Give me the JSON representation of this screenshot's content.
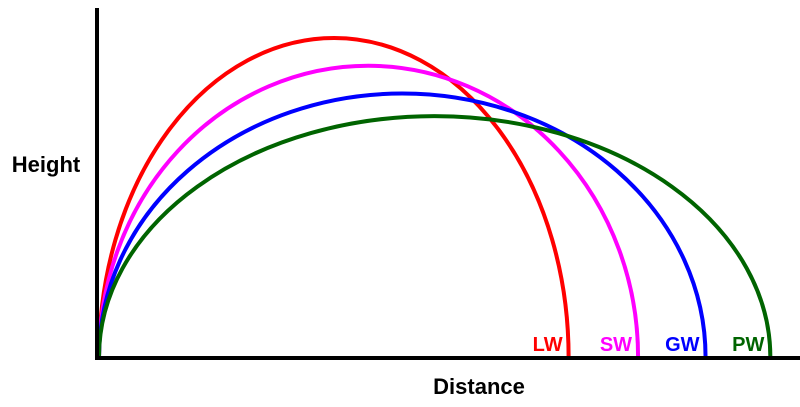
{
  "chart_data": {
    "type": "line",
    "title": "",
    "xlabel": "Distance",
    "ylabel": "Height",
    "xlim": [
      0,
      100
    ],
    "ylim": [
      0,
      100
    ],
    "grid": false,
    "axes_ticks": false,
    "series": [
      {
        "name": "LW",
        "color": "#ff0000",
        "apex_x": 35.2,
        "apex_y": 100,
        "landing_x": 70.3
      },
      {
        "name": "SW",
        "color": "#ff00ff",
        "apex_x": 40.3,
        "apex_y": 91.3,
        "landing_x": 80.7
      },
      {
        "name": "GW",
        "color": "#0000ff",
        "apex_x": 45.4,
        "apex_y": 82.6,
        "landing_x": 90.8
      },
      {
        "name": "PW",
        "color": "#006400",
        "apex_x": 50.2,
        "apex_y": 75.5,
        "landing_x": 100.5
      }
    ]
  }
}
